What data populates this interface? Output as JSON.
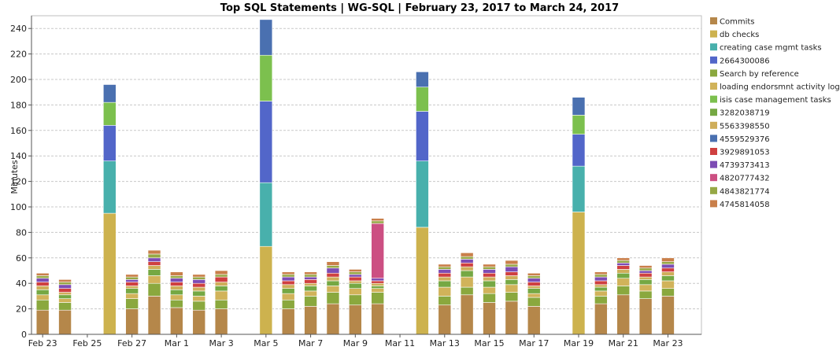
{
  "chart_data": {
    "type": "bar",
    "stacked": true,
    "title": "Top SQL Statements | WG-SQL | February 23, 2017 to March 24, 2017",
    "ylabel": "Minutes",
    "xlabel": "",
    "ylim": [
      0,
      250
    ],
    "yticks": [
      0,
      20,
      40,
      60,
      80,
      100,
      120,
      140,
      160,
      180,
      200,
      220,
      240
    ],
    "grid": true,
    "legend_position": "right",
    "categories": [
      "Feb 23",
      "Feb 24",
      "Feb 25",
      "Feb 26",
      "Feb 27",
      "Feb 28",
      "Mar 1",
      "Mar 2",
      "Mar 3",
      "Mar 4",
      "Mar 5",
      "Mar 6",
      "Mar 7",
      "Mar 8",
      "Mar 9",
      "Mar 10",
      "Mar 11",
      "Mar 12",
      "Mar 13",
      "Mar 14",
      "Mar 15",
      "Mar 16",
      "Mar 17",
      "Mar 18",
      "Mar 19",
      "Mar 20",
      "Mar 21",
      "Mar 22",
      "Mar 23",
      "Mar 24"
    ],
    "xtick_labels": [
      "Feb 23",
      "Feb 25",
      "Feb 27",
      "Mar 1",
      "Mar 3",
      "Mar 5",
      "Mar 7",
      "Mar 9",
      "Mar 11",
      "Mar 13",
      "Mar 15",
      "Mar 17",
      "Mar 19",
      "Mar 21",
      "Mar 23"
    ],
    "series": [
      {
        "name": "Commits",
        "color": "#b5874a",
        "values": [
          19,
          19,
          0,
          0,
          20,
          30,
          21,
          19,
          20,
          0,
          0,
          20,
          22,
          24,
          23,
          24,
          0,
          0,
          23,
          31,
          25,
          26,
          22,
          0,
          0,
          24,
          31,
          28,
          30,
          0
        ]
      },
      {
        "name": "db checks",
        "color": "#cdb24e",
        "values": [
          0,
          0,
          0,
          95,
          0,
          0,
          0,
          0,
          0,
          0,
          69,
          0,
          0,
          0,
          0,
          0,
          0,
          84,
          0,
          0,
          0,
          0,
          0,
          0,
          96,
          0,
          0,
          0,
          0,
          0
        ]
      },
      {
        "name": "creating case mgmt tasks",
        "color": "#48b0ac",
        "values": [
          0,
          0,
          0,
          41,
          0,
          0,
          0,
          0,
          0,
          0,
          50,
          0,
          0,
          0,
          0,
          0,
          0,
          52,
          0,
          0,
          0,
          0,
          0,
          0,
          36,
          0,
          0,
          0,
          0,
          0
        ]
      },
      {
        "name": "2664300086",
        "color": "#5266c9",
        "values": [
          0,
          0,
          0,
          28,
          0,
          0,
          0,
          0,
          0,
          0,
          64,
          0,
          0,
          0,
          0,
          0,
          0,
          39,
          0,
          0,
          0,
          0,
          0,
          0,
          25,
          0,
          0,
          0,
          0,
          0
        ]
      },
      {
        "name": "Search by reference",
        "color": "#8aa83e",
        "values": [
          8,
          6,
          0,
          0,
          8,
          10,
          6,
          7,
          7,
          0,
          0,
          7,
          8,
          9,
          8,
          9,
          0,
          0,
          7,
          6,
          7,
          7,
          7,
          0,
          0,
          6,
          7,
          6,
          6,
          0
        ]
      },
      {
        "name": "loading endorsmnt activity log",
        "color": "#d1b35a",
        "values": [
          4,
          3,
          0,
          0,
          4,
          6,
          4,
          4,
          7,
          0,
          0,
          5,
          4,
          5,
          5,
          3,
          0,
          0,
          7,
          8,
          5,
          6,
          3,
          0,
          0,
          4,
          6,
          5,
          6,
          0
        ]
      },
      {
        "name": "isis case management tasks",
        "color": "#7cc04e",
        "values": [
          0,
          0,
          0,
          18,
          0,
          0,
          0,
          0,
          0,
          0,
          36,
          0,
          0,
          0,
          0,
          0,
          0,
          19,
          0,
          0,
          0,
          0,
          0,
          0,
          15,
          0,
          0,
          0,
          0,
          0
        ]
      },
      {
        "name": "3282038719",
        "color": "#75a843",
        "values": [
          4,
          3,
          0,
          0,
          4,
          5,
          4,
          4,
          4,
          0,
          0,
          4,
          4,
          4,
          4,
          2,
          0,
          0,
          5,
          5,
          5,
          4,
          4,
          0,
          0,
          3,
          4,
          4,
          4,
          0
        ]
      },
      {
        "name": "5563398550",
        "color": "#cfae5a",
        "values": [
          3,
          2,
          0,
          0,
          2,
          3,
          3,
          3,
          3,
          0,
          0,
          3,
          2,
          3,
          2,
          2,
          0,
          0,
          3,
          3,
          3,
          3,
          2,
          0,
          0,
          2,
          3,
          2,
          3,
          0
        ]
      },
      {
        "name": "4559529376",
        "color": "#4a70b0",
        "values": [
          0,
          0,
          0,
          14,
          0,
          0,
          0,
          0,
          0,
          0,
          28,
          0,
          0,
          0,
          0,
          0,
          0,
          12,
          0,
          0,
          0,
          0,
          0,
          0,
          14,
          0,
          0,
          0,
          0,
          0
        ]
      },
      {
        "name": "3929891053",
        "color": "#cf4040",
        "values": [
          3,
          3,
          0,
          0,
          3,
          3,
          3,
          3,
          4,
          0,
          0,
          3,
          3,
          3,
          3,
          2,
          0,
          0,
          3,
          3,
          3,
          3,
          3,
          0,
          0,
          3,
          3,
          3,
          3,
          0
        ]
      },
      {
        "name": "4739373413",
        "color": "#7d4cb4",
        "values": [
          3,
          3,
          0,
          0,
          2,
          3,
          3,
          3,
          0,
          0,
          0,
          3,
          2,
          4,
          2,
          2,
          0,
          0,
          3,
          3,
          3,
          4,
          3,
          0,
          0,
          3,
          2,
          2,
          3,
          0
        ]
      },
      {
        "name": "4820777432",
        "color": "#cc4f82",
        "values": [
          0,
          0,
          0,
          0,
          0,
          0,
          0,
          0,
          0,
          0,
          0,
          0,
          0,
          0,
          0,
          43,
          0,
          0,
          0,
          0,
          0,
          0,
          0,
          0,
          0,
          0,
          0,
          0,
          0,
          0
        ]
      },
      {
        "name": "4843821774",
        "color": "#96a845",
        "values": [
          2,
          2,
          0,
          0,
          2,
          3,
          2,
          2,
          2,
          0,
          0,
          2,
          2,
          2,
          2,
          2,
          0,
          0,
          2,
          2,
          2,
          2,
          2,
          0,
          0,
          2,
          2,
          2,
          2,
          0
        ]
      },
      {
        "name": "4745814058",
        "color": "#c97f4a",
        "values": [
          2,
          2,
          0,
          0,
          2,
          3,
          3,
          2,
          3,
          0,
          0,
          2,
          2,
          3,
          2,
          2,
          0,
          0,
          2,
          3,
          2,
          3,
          2,
          0,
          0,
          2,
          2,
          2,
          3,
          0
        ]
      }
    ]
  }
}
